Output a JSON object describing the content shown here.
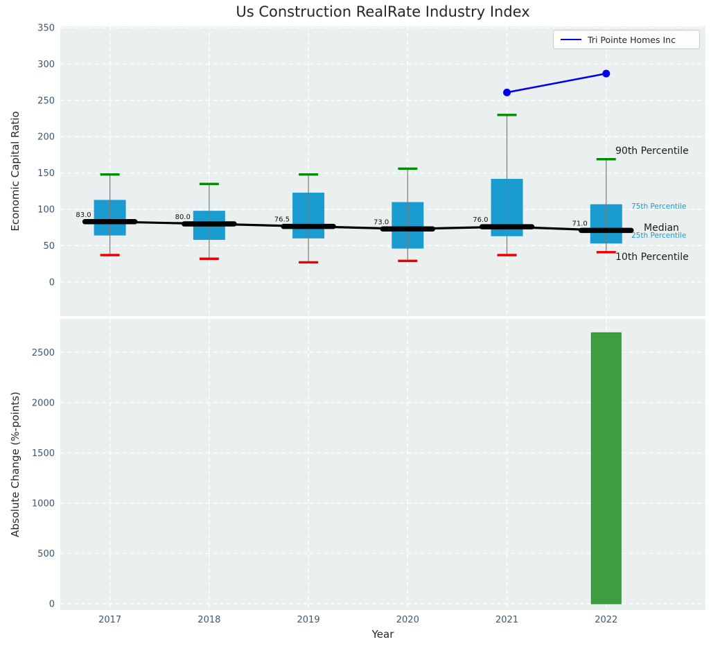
{
  "figure": {
    "title": "Us Construction RealRate Industry Index",
    "legend": {
      "entries": [
        {
          "label": "Tri Pointe Homes Inc",
          "color": "#0000ee"
        }
      ]
    }
  },
  "theme": {
    "plot_bg": "#eaeff0",
    "grid_color": "#ffffff",
    "tick_color": "#3d566e",
    "text_color": "#262626"
  },
  "chart_data": [
    {
      "type": "boxplot+line",
      "title": "Us Construction RealRate Industry Index",
      "xlabel": "Year",
      "ylabel": "Economic Capital Ratio",
      "x": [
        2017,
        2018,
        2019,
        2020,
        2021,
        2022
      ],
      "xlim": [
        2016.5,
        2023
      ],
      "ylim": [
        -47,
        352
      ],
      "yticks": [
        0,
        50,
        100,
        150,
        200,
        250,
        300,
        350
      ],
      "grid": true,
      "legend_position": "upper right",
      "percentiles": {
        "p10": [
          37,
          32,
          27,
          29,
          37,
          41
        ],
        "p25": [
          64,
          58,
          60,
          46,
          63,
          53
        ],
        "median": [
          83.0,
          80.0,
          76.5,
          73.0,
          76.0,
          71.0
        ],
        "p75": [
          113,
          98,
          123,
          110,
          142,
          107
        ],
        "p90": [
          148,
          135,
          148,
          156,
          230,
          169
        ]
      },
      "median_labels": [
        "83.0",
        "80.0",
        "76.5",
        "73.0",
        "76.0",
        "71.0"
      ],
      "series": [
        {
          "name": "Tri Pointe Homes Inc",
          "x": [
            2021,
            2022
          ],
          "values": [
            261,
            287
          ],
          "color": "#0000ee"
        }
      ],
      "annotations": [
        {
          "text": "90th Percentile",
          "size": "large",
          "color": "#1a1a1a"
        },
        {
          "text": "75th Percentile",
          "size": "small",
          "color": "#1a9cd0"
        },
        {
          "text": "Median",
          "size": "large",
          "color": "#1a1a1a"
        },
        {
          "text": "25th Percentile",
          "size": "small",
          "color": "#1a9cd0"
        },
        {
          "text": "10th Percentile",
          "size": "large",
          "color": "#1a1a1a"
        }
      ],
      "colors": {
        "box": "#1a9cd0",
        "median": "#000000",
        "p90_cap": "#008d00",
        "p10_cap": "#ee0000",
        "whisker": "#7a7a7a"
      }
    },
    {
      "type": "bar",
      "xlabel": "Year",
      "ylabel": "Absolute Change (%-points)",
      "categories": [
        2017,
        2018,
        2019,
        2020,
        2021,
        2022
      ],
      "values": [
        0,
        0,
        0,
        0,
        0,
        2695
      ],
      "yticks": [
        0,
        500,
        1000,
        1500,
        2000,
        2500
      ],
      "ylim": [
        -62,
        2833
      ],
      "grid": true,
      "bar_color": "#3d9e40"
    }
  ]
}
